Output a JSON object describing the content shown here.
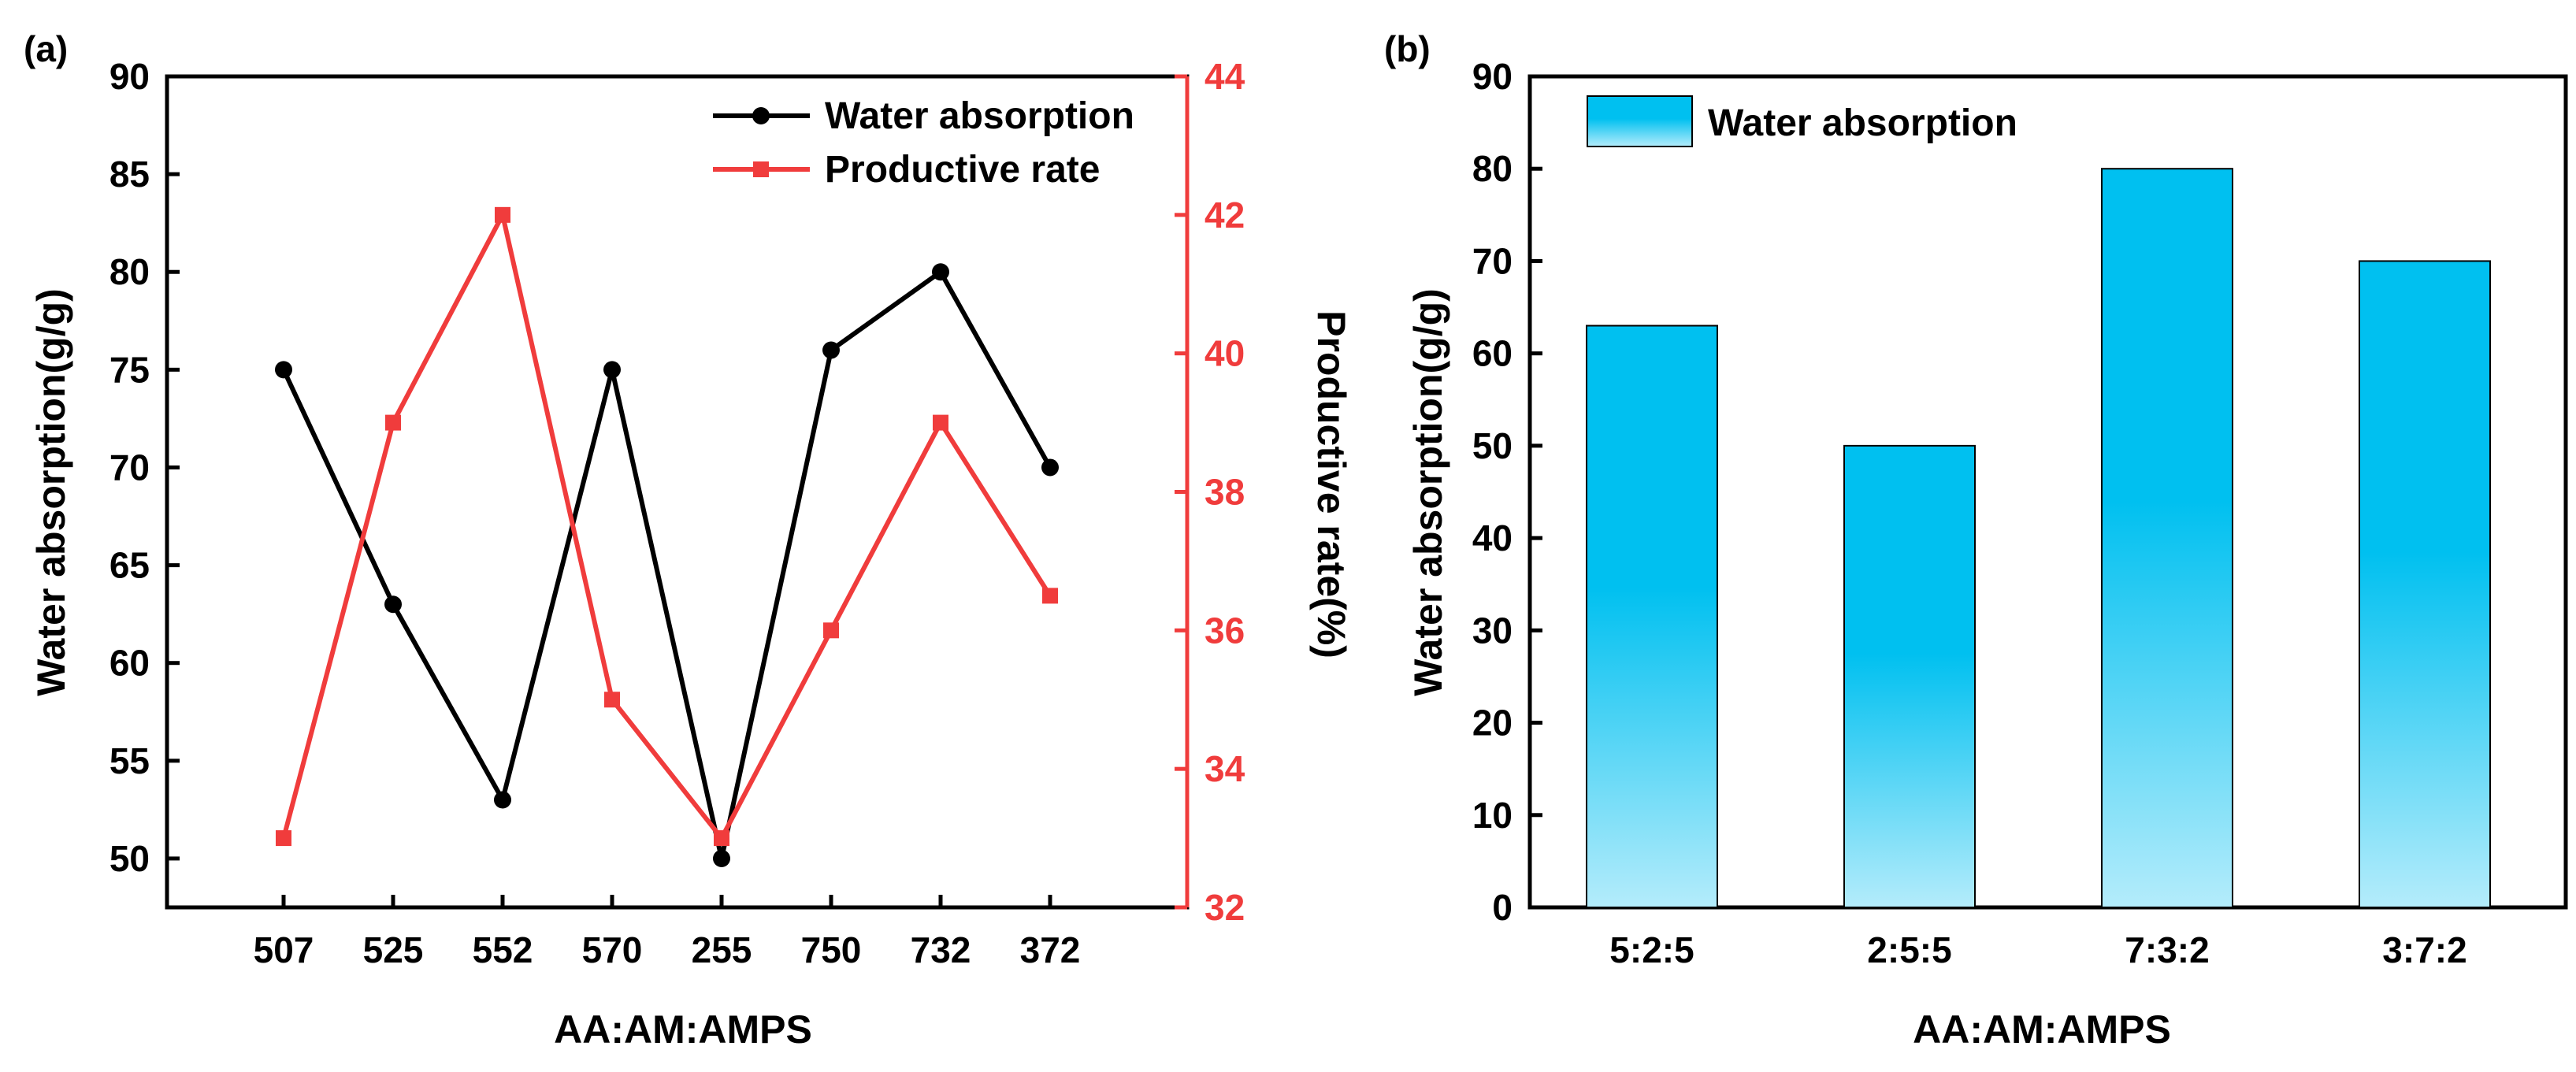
{
  "colors": {
    "black_series": "#000000",
    "red_series": "#f03c3c",
    "bar_top": "#00c0f0",
    "bar_bottom": "#b4ecfb"
  },
  "chart_data": [
    {
      "panel_label": "(a)",
      "type": "line",
      "xlabel": "AA:AM:AMPS",
      "categories": [
        "507",
        "525",
        "552",
        "570",
        "255",
        "750",
        "732",
        "372"
      ],
      "y_left": {
        "label": "Water absorption(g/g)",
        "lim": [
          47.5,
          90
        ],
        "ticks": [
          50,
          55,
          60,
          65,
          70,
          75,
          80,
          85,
          90
        ]
      },
      "y_right": {
        "label": "Productive rate(%)",
        "lim": [
          32,
          44
        ],
        "ticks": [
          32,
          34,
          36,
          38,
          40,
          42,
          44
        ]
      },
      "series": [
        {
          "name": "Water absorption",
          "axis": "left",
          "color": "#000000",
          "marker": "circle",
          "values": [
            75,
            63,
            53,
            75,
            50,
            76,
            80,
            70
          ]
        },
        {
          "name": "Productive rate",
          "axis": "right",
          "color": "#f03c3c",
          "marker": "square",
          "values": [
            33,
            39,
            42,
            35,
            33,
            36,
            39,
            36.5
          ]
        }
      ],
      "legend_position": "top-right"
    },
    {
      "panel_label": "(b)",
      "type": "bar",
      "xlabel": "AA:AM:AMPS",
      "ylabel": "Water absorption(g/g)",
      "ylim": [
        0,
        90
      ],
      "yticks": [
        0,
        10,
        20,
        30,
        40,
        50,
        60,
        70,
        80,
        90
      ],
      "categories": [
        "5:2:5",
        "2:5:5",
        "7:3:2",
        "3:7:2"
      ],
      "series": [
        {
          "name": "Water absorption",
          "values": [
            63,
            50,
            80,
            70
          ]
        }
      ],
      "legend_position": "top-left"
    }
  ]
}
